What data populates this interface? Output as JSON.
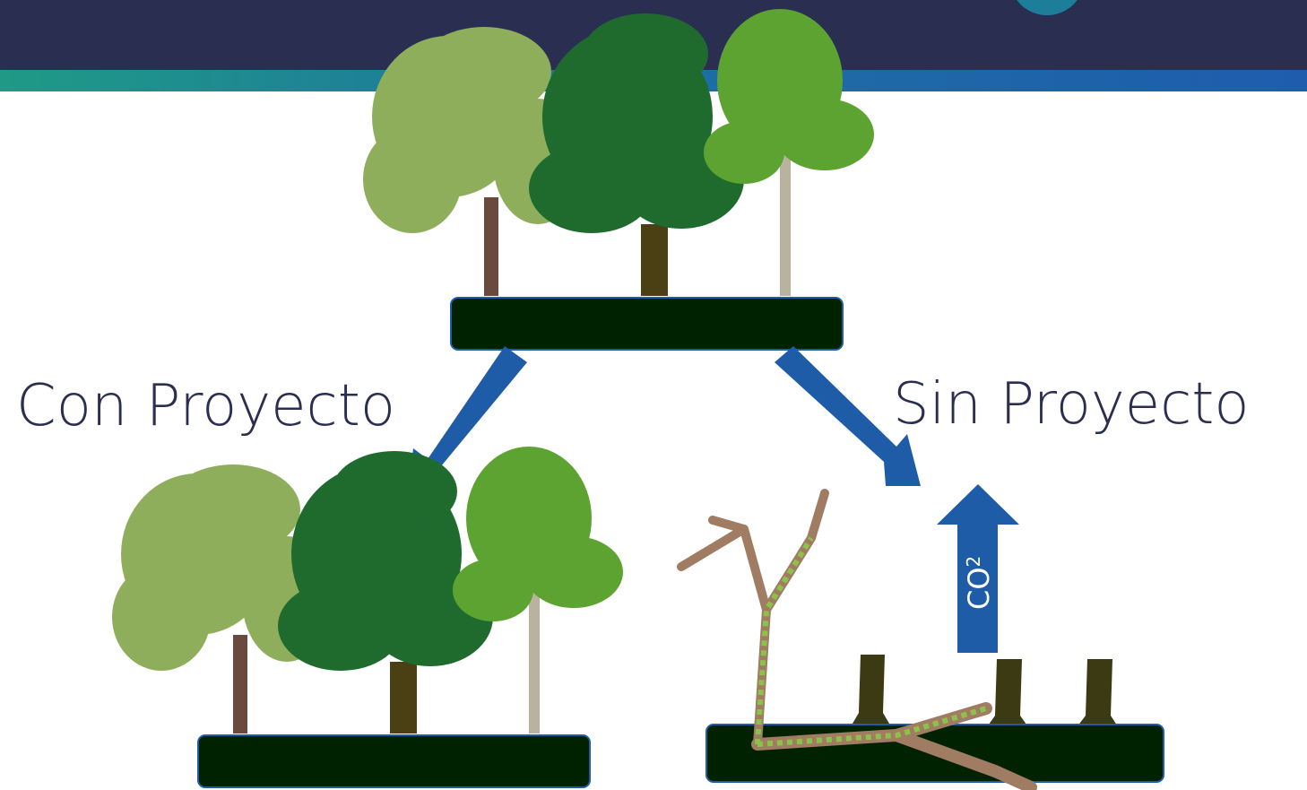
{
  "labels": {
    "with_project": "Con Proyecto",
    "without_project": "Sin Proyecto"
  },
  "emission": {
    "text": "CO",
    "subscript": "2"
  }
}
